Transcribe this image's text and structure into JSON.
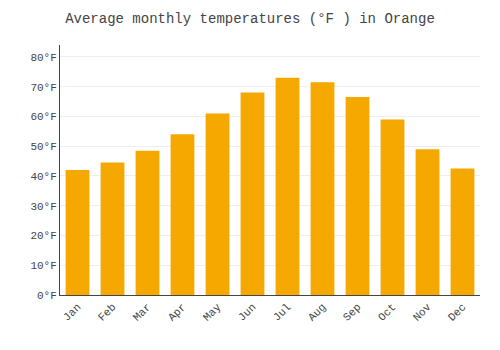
{
  "chart_data": {
    "type": "bar",
    "title": "Average monthly temperatures (°F ) in Orange",
    "categories": [
      "Jan",
      "Feb",
      "Mar",
      "Apr",
      "May",
      "Jun",
      "Jul",
      "Aug",
      "Sep",
      "Oct",
      "Nov",
      "Dec"
    ],
    "values": [
      42,
      44.5,
      48.5,
      54,
      61,
      68,
      73,
      71.5,
      66.5,
      59,
      49,
      42.5
    ],
    "color": "#F5A800",
    "ylim": [
      0,
      84
    ],
    "yticks": [
      {
        "value": 0,
        "label": "0°F"
      },
      {
        "value": 10,
        "label": "10°F"
      },
      {
        "value": 20,
        "label": "20°F"
      },
      {
        "value": 30,
        "label": "30°F"
      },
      {
        "value": 40,
        "label": "40°F"
      },
      {
        "value": 50,
        "label": "50°F"
      },
      {
        "value": 60,
        "label": "60°F"
      },
      {
        "value": 70,
        "label": "70°F"
      },
      {
        "value": 80,
        "label": "80°F"
      }
    ],
    "grid": true
  }
}
